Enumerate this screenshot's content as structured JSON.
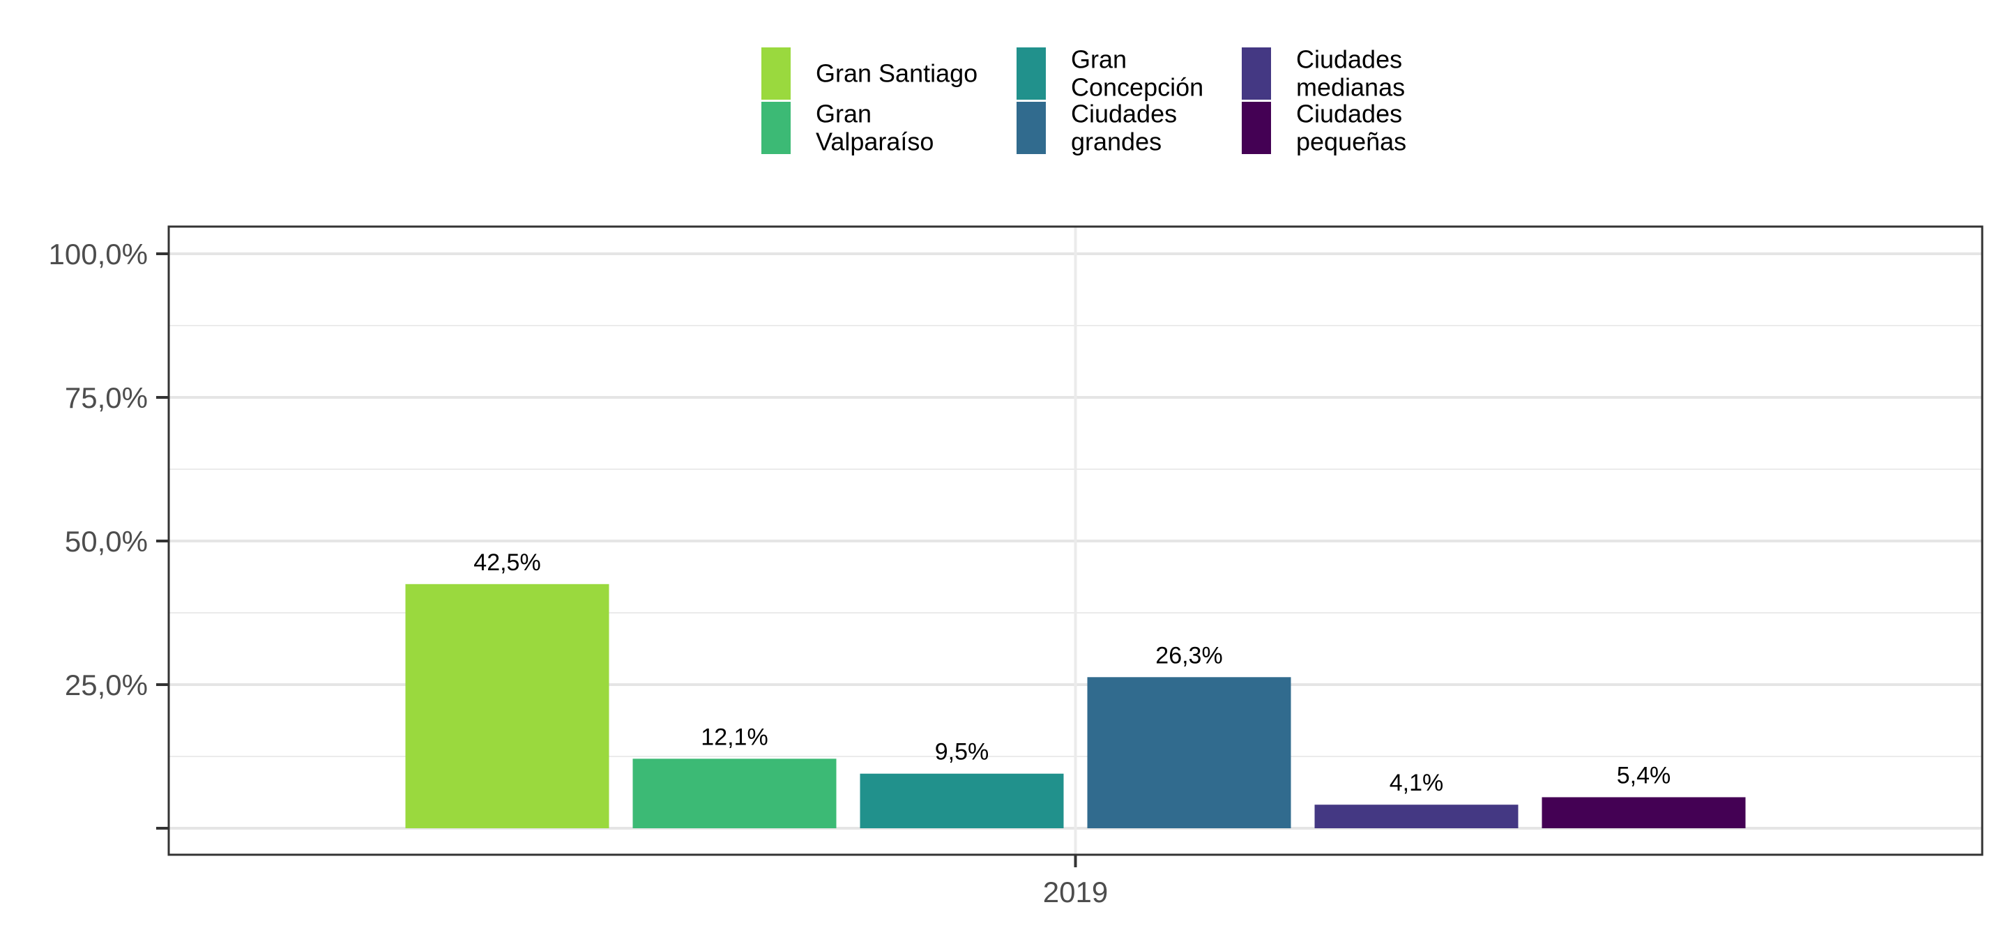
{
  "chart_data": {
    "type": "bar",
    "title": "",
    "xlabel": "",
    "ylabel": "",
    "categories": [
      "2019"
    ],
    "ylim": [
      0,
      100
    ],
    "y_ticks": [
      {
        "value": 0,
        "label": ""
      },
      {
        "value": 25,
        "label": "25,0%"
      },
      {
        "value": 50,
        "label": "50,0%"
      },
      {
        "value": 75,
        "label": "75,0%"
      },
      {
        "value": 100,
        "label": "100,0%"
      }
    ],
    "grid": true,
    "legend_position": "top",
    "series": [
      {
        "name": "Gran Santiago",
        "values": [
          42.5
        ],
        "labels": [
          "42,5%"
        ],
        "color": "#9ad93e"
      },
      {
        "name": "Gran Valparaíso",
        "values": [
          12.1
        ],
        "labels": [
          "12,1%"
        ],
        "color": "#3cba75"
      },
      {
        "name": "Gran Concepción",
        "values": [
          9.5
        ],
        "labels": [
          "9,5%"
        ],
        "color": "#21918c"
      },
      {
        "name": "Ciudades grandes",
        "values": [
          26.3
        ],
        "labels": [
          "26,3%"
        ],
        "color": "#316b8e"
      },
      {
        "name": "Ciudades medianas",
        "values": [
          4.1
        ],
        "labels": [
          "4,1%"
        ],
        "color": "#443883"
      },
      {
        "name": "Ciudades pequeñas",
        "values": [
          5.4
        ],
        "labels": [
          "5,4%"
        ],
        "color": "#440154"
      }
    ],
    "legend_lines": [
      [
        "Gran Santiago"
      ],
      [
        "Gran",
        "Valparaíso"
      ],
      [
        "Gran",
        "Concepción"
      ],
      [
        "Ciudades",
        "grandes"
      ],
      [
        "Ciudades",
        "medianas"
      ],
      [
        "Ciudades",
        "pequeñas"
      ]
    ]
  }
}
